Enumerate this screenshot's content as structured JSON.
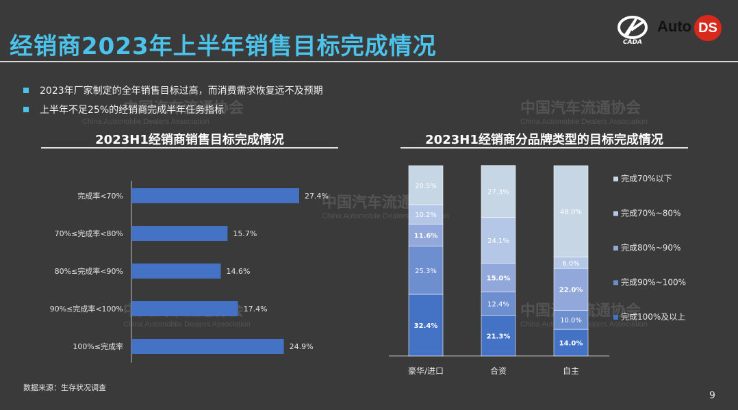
{
  "page": {
    "title": "经销商2023年上半年销售目标完成情况",
    "bullets": [
      "2023年厂家制定的全年销售目标过高，而消费需求恢复远不及预期",
      "上半年不足25%的经销商完成半年任务指标"
    ],
    "source": "数据来源：生存状况调查",
    "page_number": "9",
    "logo_text": "Auto",
    "logo_badge": "DS",
    "logo_mark_text": "CADA",
    "watermark_cn": "中国汽车流通协会",
    "watermark_en": "China Automobile Dealers Association",
    "accent_color": "#4cc3ea"
  },
  "chart_data": [
    {
      "type": "bar",
      "orientation": "horizontal",
      "title": "2023H1经销商销售目标完成情况",
      "categories": [
        "完成率<70%",
        "70%≤完成率<80%",
        "80%≤完成率<90%",
        "90%≤完成率<100%",
        "100%≤完成率"
      ],
      "values": [
        27.4,
        15.7,
        14.6,
        17.4,
        24.9
      ],
      "labels": [
        "27.4%",
        "15.7%",
        "14.6%",
        "17.4%",
        "24.9%"
      ],
      "xlim": [
        0,
        30
      ],
      "color": "#4472c4"
    },
    {
      "type": "bar",
      "stacked": true,
      "percent": true,
      "title": "2023H1经销商分品牌类型的目标完成情况",
      "categories": [
        "豪华/进口",
        "合资",
        "自主"
      ],
      "legend_position": "right",
      "series": [
        {
          "name": "完成100%及以上",
          "values": [
            32.4,
            21.3,
            14.0
          ],
          "labels": [
            "32.4%",
            "21.3%",
            "14.0%"
          ],
          "color": "#4472c4",
          "label_color": "#ffffff",
          "bold": true
        },
        {
          "name": "完成90%~100%",
          "values": [
            25.3,
            12.4,
            10.0
          ],
          "labels": [
            "25.3%",
            "12.4%",
            "10.0%"
          ],
          "color": "#6d8ecf",
          "label_color": "#ffffff",
          "bold": false
        },
        {
          "name": "完成80%~90%",
          "values": [
            11.6,
            15.0,
            22.0
          ],
          "labels": [
            "11.6%",
            "15.0%",
            "22.0%"
          ],
          "color": "#92a8da",
          "label_color": "#ffffff",
          "bold": true
        },
        {
          "name": "完成70%~80%",
          "values": [
            10.2,
            24.1,
            6.0
          ],
          "labels": [
            "10.2%",
            "24.1%",
            "6.0%"
          ],
          "color": "#b4c7e7",
          "label_color": "#ffffff",
          "bold": false
        },
        {
          "name": "完成70%以下",
          "values": [
            20.5,
            27.3,
            48.0
          ],
          "labels": [
            "20.5%",
            "27.3%",
            "48.0%"
          ],
          "color": "#c6d6e4",
          "label_color": "#ffffff",
          "bold": false
        }
      ]
    }
  ]
}
